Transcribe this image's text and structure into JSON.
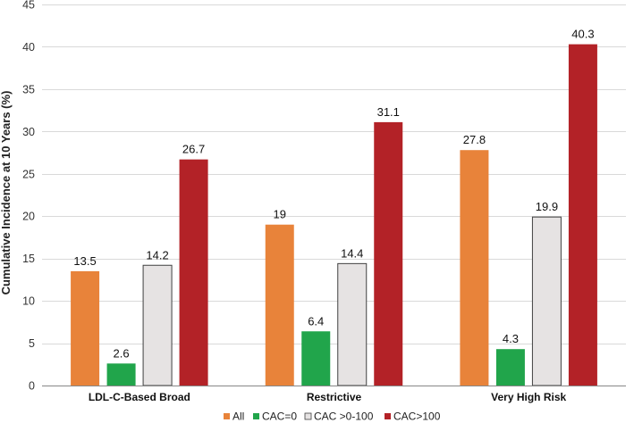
{
  "chart_data": {
    "type": "bar",
    "title": "",
    "xlabel": "",
    "ylabel": "Cumulative Incidence at 10 Years (%)",
    "ylim": [
      0,
      45
    ],
    "yticks": [
      0,
      5,
      10,
      15,
      20,
      25,
      30,
      35,
      40,
      45
    ],
    "grid": true,
    "legend_position": "bottom",
    "categories": [
      "LDL-C-Based Broad",
      "Restrictive",
      "Very High Risk"
    ],
    "series": [
      {
        "name": "All",
        "color": "#E8833A",
        "values": [
          13.5,
          19,
          27.8
        ]
      },
      {
        "name": "CAC=0",
        "color": "#21A54B",
        "values": [
          2.6,
          6.4,
          4.3
        ]
      },
      {
        "name": "CAC >0-100",
        "color": "#E6E3E3",
        "values": [
          14.2,
          14.4,
          19.9
        ]
      },
      {
        "name": "CAC>100",
        "color": "#B32227",
        "values": [
          26.7,
          31.1,
          40.3
        ]
      }
    ]
  }
}
